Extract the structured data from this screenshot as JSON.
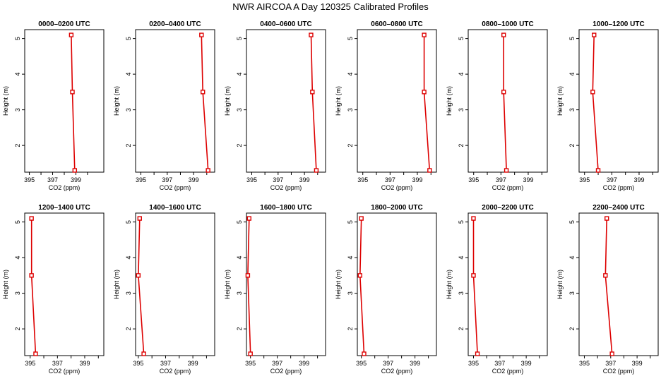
{
  "title": "NWR AIRCOA A  Day 120325  Calibrated Profiles",
  "series_color": "#dd0000",
  "chart_data": [
    {
      "type": "line",
      "title": "0000–0200 UTC",
      "xlabel": "CO2 (ppm)",
      "ylabel": "Height (m)",
      "xlim": [
        394.6,
        401.4
      ],
      "ylim": [
        1.25,
        5.25
      ],
      "xticks": [
        395,
        397,
        399
      ],
      "xtick_labels": [
        "395",
        "397",
        "399"
      ],
      "yticks": [
        2,
        3,
        4,
        5
      ],
      "ytick_labels": [
        "2",
        "3",
        "4",
        "5"
      ],
      "x": [
        398.6,
        398.7,
        398.9
      ],
      "y": [
        5.1,
        3.5,
        1.3
      ]
    },
    {
      "type": "line",
      "title": "0200–0400 UTC",
      "xlabel": "CO2 (ppm)",
      "ylabel": "Height (m)",
      "xlim": [
        394.6,
        400.6
      ],
      "ylim": [
        1.25,
        5.25
      ],
      "xticks": [
        395,
        397,
        399
      ],
      "xtick_labels": [
        "395",
        "397",
        "399"
      ],
      "yticks": [
        2,
        3,
        4,
        5
      ],
      "ytick_labels": [
        "2",
        "3",
        "4",
        "5"
      ],
      "x": [
        399.6,
        399.7,
        400.1
      ],
      "y": [
        5.1,
        3.5,
        1.3
      ]
    },
    {
      "type": "line",
      "title": "0400–0600 UTC",
      "xlabel": "CO2 (ppm)",
      "ylabel": "Height (m)",
      "xlim": [
        394.6,
        400.6
      ],
      "ylim": [
        1.25,
        5.25
      ],
      "xticks": [
        395,
        397,
        399
      ],
      "xtick_labels": [
        "395",
        "397",
        "399"
      ],
      "yticks": [
        2,
        3,
        4,
        5
      ],
      "ytick_labels": [
        "2",
        "3",
        "4",
        "5"
      ],
      "x": [
        399.5,
        399.6,
        399.9
      ],
      "y": [
        5.1,
        3.5,
        1.3
      ]
    },
    {
      "type": "line",
      "title": "0600–0800 UTC",
      "xlabel": "CO2 (ppm)",
      "ylabel": "Height (m)",
      "xlim": [
        394.6,
        400.4
      ],
      "ylim": [
        1.25,
        5.25
      ],
      "xticks": [
        395,
        397,
        399
      ],
      "xtick_labels": [
        "395",
        "397",
        "399"
      ],
      "yticks": [
        2,
        3,
        4,
        5
      ],
      "ytick_labels": [
        "2",
        "3",
        "4",
        "5"
      ],
      "x": [
        399.5,
        399.5,
        399.9
      ],
      "y": [
        5.1,
        3.5,
        1.3
      ]
    },
    {
      "type": "line",
      "title": "0800–1000 UTC",
      "xlabel": "CO2 (ppm)",
      "ylabel": "Height (m)",
      "xlim": [
        394.6,
        400.4
      ],
      "ylim": [
        1.25,
        5.25
      ],
      "xticks": [
        395,
        397,
        399
      ],
      "xtick_labels": [
        "395",
        "397",
        "399"
      ],
      "yticks": [
        2,
        3,
        4,
        5
      ],
      "ytick_labels": [
        "2",
        "3",
        "4",
        "5"
      ],
      "x": [
        397.2,
        397.2,
        397.4
      ],
      "y": [
        5.1,
        3.5,
        1.3
      ]
    },
    {
      "type": "line",
      "title": "1000–1200 UTC",
      "xlabel": "CO2 (ppm)",
      "ylabel": "Height (m)",
      "xlim": [
        394.6,
        400.4
      ],
      "ylim": [
        1.25,
        5.25
      ],
      "xticks": [
        395,
        397,
        399
      ],
      "xtick_labels": [
        "395",
        "397",
        "399"
      ],
      "yticks": [
        2,
        3,
        4,
        5
      ],
      "ytick_labels": [
        "2",
        "3",
        "4",
        "5"
      ],
      "x": [
        395.7,
        395.6,
        396.0
      ],
      "y": [
        5.1,
        3.5,
        1.3
      ]
    },
    {
      "type": "line",
      "title": "1200–1400 UTC",
      "xlabel": "CO2 (ppm)",
      "ylabel": "Height (m)",
      "xlim": [
        394.6,
        400.4
      ],
      "ylim": [
        1.25,
        5.25
      ],
      "xticks": [
        395,
        397,
        399
      ],
      "xtick_labels": [
        "395",
        "397",
        "399"
      ],
      "yticks": [
        2,
        3,
        4,
        5
      ],
      "ytick_labels": [
        "2",
        "3",
        "4",
        "5"
      ],
      "x": [
        395.1,
        395.1,
        395.4
      ],
      "y": [
        5.1,
        3.5,
        1.3
      ]
    },
    {
      "type": "line",
      "title": "1400–1600 UTC",
      "xlabel": "CO2 (ppm)",
      "ylabel": "Height (m)",
      "xlim": [
        394.8,
        400.6
      ],
      "ylim": [
        1.25,
        5.25
      ],
      "xticks": [
        395,
        397,
        399
      ],
      "xtick_labels": [
        "395",
        "397",
        "399"
      ],
      "yticks": [
        2,
        3,
        4,
        5
      ],
      "ytick_labels": [
        "2",
        "3",
        "4",
        "5"
      ],
      "x": [
        395.1,
        395.0,
        395.4
      ],
      "y": [
        5.1,
        3.5,
        1.3
      ]
    },
    {
      "type": "line",
      "title": "1600–1800 UTC",
      "xlabel": "CO2 (ppm)",
      "ylabel": "Height (m)",
      "xlim": [
        394.7,
        400.6
      ],
      "ylim": [
        1.25,
        5.25
      ],
      "xticks": [
        395,
        397,
        399
      ],
      "xtick_labels": [
        "395",
        "397",
        "399"
      ],
      "yticks": [
        2,
        3,
        4,
        5
      ],
      "ytick_labels": [
        "2",
        "3",
        "4",
        "5"
      ],
      "x": [
        394.9,
        394.8,
        395.0
      ],
      "y": [
        5.1,
        3.5,
        1.3
      ]
    },
    {
      "type": "line",
      "title": "1800–2000 UTC",
      "xlabel": "CO2 (ppm)",
      "ylabel": "Height (m)",
      "xlim": [
        394.7,
        400.6
      ],
      "ylim": [
        1.25,
        5.25
      ],
      "xticks": [
        395,
        397,
        399
      ],
      "xtick_labels": [
        "395",
        "397",
        "399"
      ],
      "yticks": [
        2,
        3,
        4,
        5
      ],
      "ytick_labels": [
        "2",
        "3",
        "4",
        "5"
      ],
      "x": [
        395.0,
        394.9,
        395.2
      ],
      "y": [
        5.1,
        3.5,
        1.3
      ]
    },
    {
      "type": "line",
      "title": "2000–2200 UTC",
      "xlabel": "CO2 (ppm)",
      "ylabel": "Height (m)",
      "xlim": [
        394.6,
        400.6
      ],
      "ylim": [
        1.25,
        5.25
      ],
      "xticks": [
        395,
        397,
        399
      ],
      "xtick_labels": [
        "395",
        "397",
        "399"
      ],
      "yticks": [
        2,
        3,
        4,
        5
      ],
      "ytick_labels": [
        "2",
        "3",
        "4",
        "5"
      ],
      "x": [
        395.0,
        395.0,
        395.3
      ],
      "y": [
        5.1,
        3.5,
        1.3
      ]
    },
    {
      "type": "line",
      "title": "2200–2400 UTC",
      "xlabel": "CO2 (ppm)",
      "ylabel": "Height (m)",
      "xlim": [
        394.6,
        400.6
      ],
      "ylim": [
        1.25,
        5.25
      ],
      "xticks": [
        395,
        397,
        399
      ],
      "xtick_labels": [
        "395",
        "397",
        "399"
      ],
      "yticks": [
        2,
        3,
        4,
        5
      ],
      "ytick_labels": [
        "2",
        "3",
        "4",
        "5"
      ],
      "x": [
        396.7,
        396.6,
        397.1
      ],
      "y": [
        5.1,
        3.5,
        1.3
      ]
    }
  ]
}
